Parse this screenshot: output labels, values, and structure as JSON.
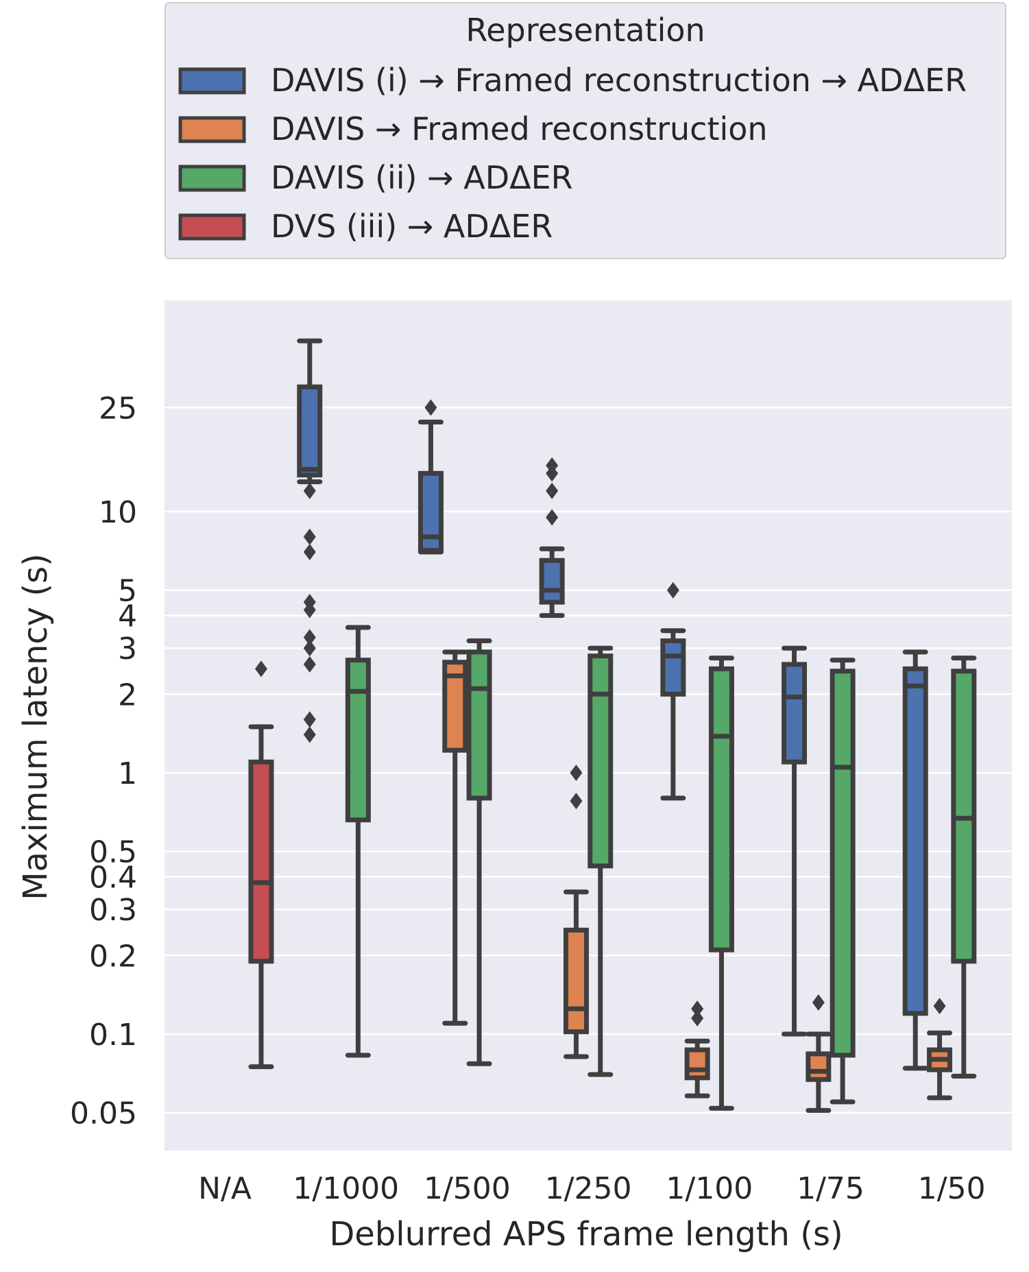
{
  "chart_data": {
    "type": "box",
    "title": "",
    "xlabel": "Deblurred APS frame length (s)",
    "ylabel": "Maximum latency (s)",
    "yscale": "log",
    "ylim": [
      0.04,
      60
    ],
    "yticks": [
      {
        "value": 0.05,
        "label": "0.05"
      },
      {
        "value": 0.1,
        "label": "0.1"
      },
      {
        "value": 0.2,
        "label": "0.2"
      },
      {
        "value": 0.3,
        "label": "0.3"
      },
      {
        "value": 0.4,
        "label": "0.4"
      },
      {
        "value": 0.5,
        "label": "0.5"
      },
      {
        "value": 1,
        "label": "1"
      },
      {
        "value": 2,
        "label": "2"
      },
      {
        "value": 3,
        "label": "3"
      },
      {
        "value": 4,
        "label": "4"
      },
      {
        "value": 5,
        "label": "5"
      },
      {
        "value": 10,
        "label": "10"
      },
      {
        "value": 25,
        "label": "25"
      }
    ],
    "categories": [
      "N/A",
      "1/1000",
      "1/500",
      "1/250",
      "1/100",
      "1/75",
      "1/50"
    ],
    "legend": {
      "title": "Representation",
      "placement": "top"
    },
    "series": [
      {
        "name": "DAVIS (i) → Framed reconstruction → ADΔER",
        "color": "#4c72b0",
        "boxes": [
          null,
          {
            "whislo": 13.0,
            "q1": 13.8,
            "med": 14.5,
            "q3": 30,
            "whishi": 45,
            "fliers": [
              12,
              8,
              7,
              4.5,
              4.2,
              3.3,
              3.0,
              2.6,
              1.6,
              1.4
            ]
          },
          {
            "whislo": 7.0,
            "q1": 7.1,
            "med": 8,
            "q3": 14,
            "whishi": 22,
            "fliers": [
              25
            ]
          },
          {
            "whislo": 4.0,
            "q1": 4.5,
            "med": 5,
            "q3": 6.5,
            "whishi": 7.2,
            "fliers": [
              15,
              14,
              12,
              9.5
            ]
          },
          {
            "whislo": 0.8,
            "q1": 2.0,
            "med": 2.8,
            "q3": 3.2,
            "whishi": 3.5,
            "fliers": [
              5
            ]
          },
          {
            "whislo": 0.1,
            "q1": 1.1,
            "med": 1.95,
            "q3": 2.6,
            "whishi": 3.0,
            "fliers": []
          },
          {
            "whislo": 0.074,
            "q1": 0.12,
            "med": 2.15,
            "q3": 2.5,
            "whishi": 2.9,
            "fliers": []
          }
        ]
      },
      {
        "name": "DAVIS → Framed reconstruction",
        "color": "#dd8452",
        "boxes": [
          null,
          null,
          {
            "whislo": 0.11,
            "q1": 1.22,
            "med": 2.35,
            "q3": 2.65,
            "whishi": 2.9,
            "fliers": []
          },
          {
            "whislo": 0.082,
            "q1": 0.102,
            "med": 0.125,
            "q3": 0.25,
            "whishi": 0.35,
            "fliers": [
              1.0,
              0.78
            ]
          },
          {
            "whislo": 0.058,
            "q1": 0.068,
            "med": 0.073,
            "q3": 0.087,
            "whishi": 0.094,
            "fliers": [
              0.125,
              0.115
            ]
          },
          {
            "whislo": 0.051,
            "q1": 0.067,
            "med": 0.072,
            "q3": 0.084,
            "whishi": 0.1,
            "fliers": [
              0.132
            ]
          },
          {
            "whislo": 0.057,
            "q1": 0.073,
            "med": 0.08,
            "q3": 0.087,
            "whishi": 0.101,
            "fliers": [
              0.128
            ]
          }
        ]
      },
      {
        "name": "DAVIS (ii) → ADΔER",
        "color": "#55a868",
        "boxes": [
          null,
          {
            "whislo": 0.083,
            "q1": 0.66,
            "med": 2.05,
            "q3": 2.7,
            "whishi": 3.6,
            "fliers": []
          },
          {
            "whislo": 0.077,
            "q1": 0.8,
            "med": 2.1,
            "q3": 2.9,
            "whishi": 3.2,
            "fliers": []
          },
          {
            "whislo": 0.07,
            "q1": 0.44,
            "med": 2.0,
            "q3": 2.8,
            "whishi": 3.0,
            "fliers": []
          },
          {
            "whislo": 0.052,
            "q1": 0.21,
            "med": 1.38,
            "q3": 2.5,
            "whishi": 2.75,
            "fliers": []
          },
          {
            "whislo": 0.055,
            "q1": 0.083,
            "med": 1.05,
            "q3": 2.45,
            "whishi": 2.7,
            "fliers": []
          },
          {
            "whislo": 0.069,
            "q1": 0.19,
            "med": 0.67,
            "q3": 2.45,
            "whishi": 2.75,
            "fliers": []
          }
        ]
      },
      {
        "name": "DVS (iii) → ADΔER",
        "color": "#c44e52",
        "boxes": [
          {
            "whislo": 0.075,
            "q1": 0.19,
            "med": 0.38,
            "q3": 1.1,
            "whishi": 1.5,
            "fliers": [
              2.5
            ]
          },
          null,
          null,
          null,
          null,
          null,
          null
        ]
      }
    ]
  }
}
